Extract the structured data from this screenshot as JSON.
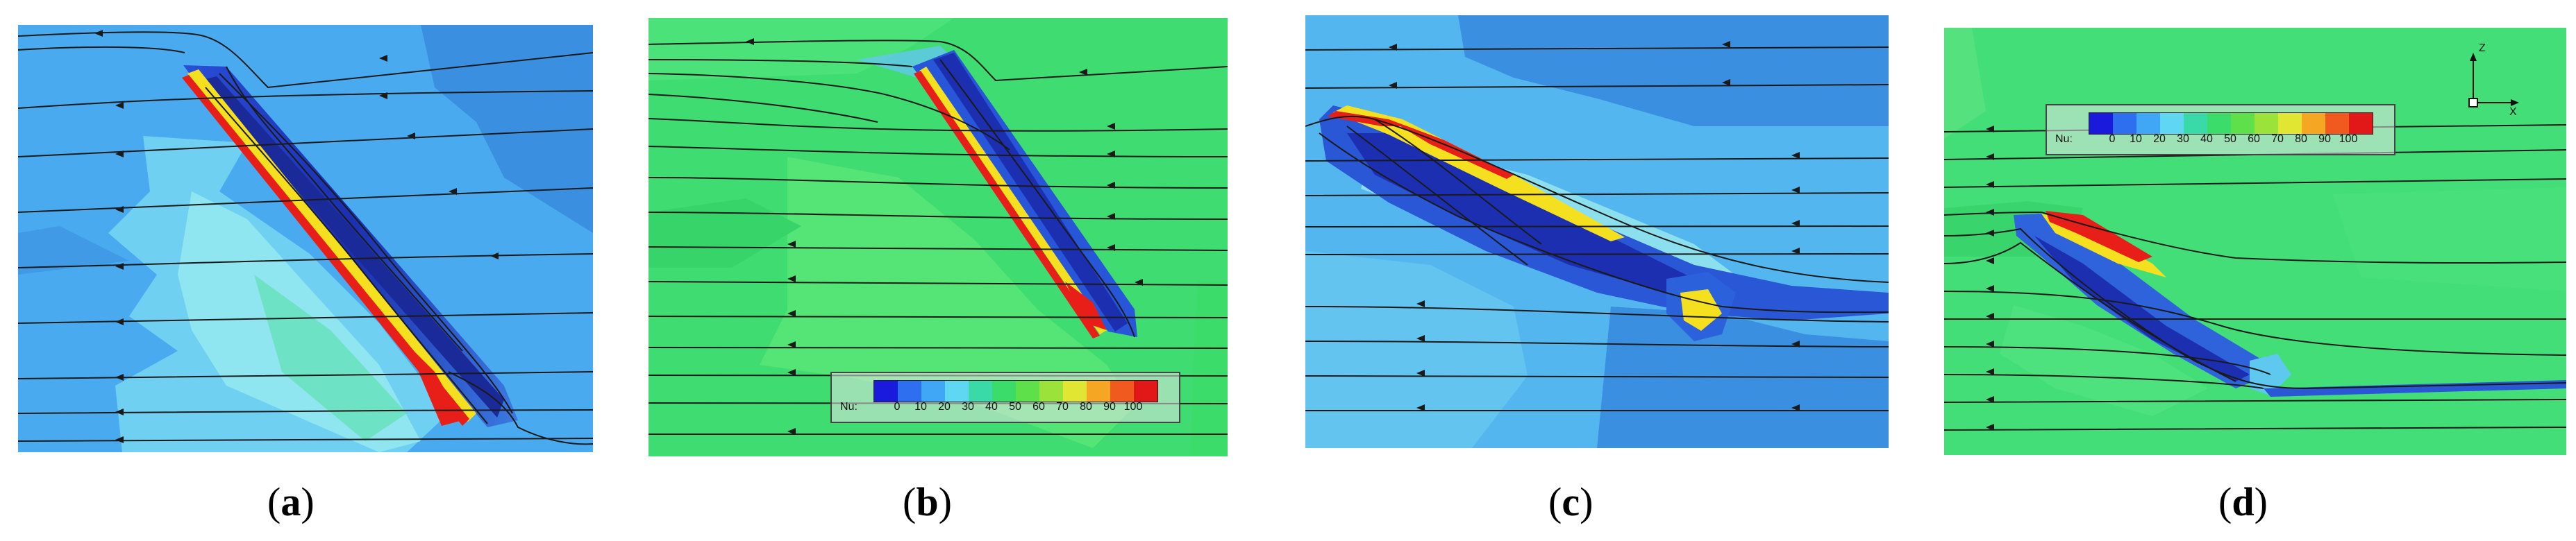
{
  "panels": [
    {
      "id": "a",
      "caption_open": "(",
      "caption_letter": "a",
      "caption_close": ")"
    },
    {
      "id": "b",
      "caption_open": "(",
      "caption_letter": "b",
      "caption_close": ")"
    },
    {
      "id": "c",
      "caption_open": "(",
      "caption_letter": "c",
      "caption_close": ")"
    },
    {
      "id": "d",
      "caption_open": "(",
      "caption_letter": "d",
      "caption_close": ")"
    }
  ],
  "legend": {
    "label": "Nu:",
    "ticks": [
      "0",
      "10",
      "20",
      "30",
      "40",
      "50",
      "60",
      "70",
      "80",
      "90",
      "100"
    ],
    "colors": [
      "#1a1adc",
      "#2e6ff0",
      "#3fa7f5",
      "#5fd6f2",
      "#39d9a8",
      "#3cdc6a",
      "#5ee04a",
      "#9be23a",
      "#e0e632",
      "#f5a623",
      "#f05a1e",
      "#e01818"
    ]
  },
  "axis": {
    "z_label": "Z",
    "x_label": "X"
  },
  "colors": {
    "panel_a_bg": "#49aaf0",
    "panel_b_bg": "#3fdc72",
    "panel_c_bg": "#53b6ee",
    "panel_d_bg": "#43de78",
    "streamline": "#1a1a1a"
  }
}
